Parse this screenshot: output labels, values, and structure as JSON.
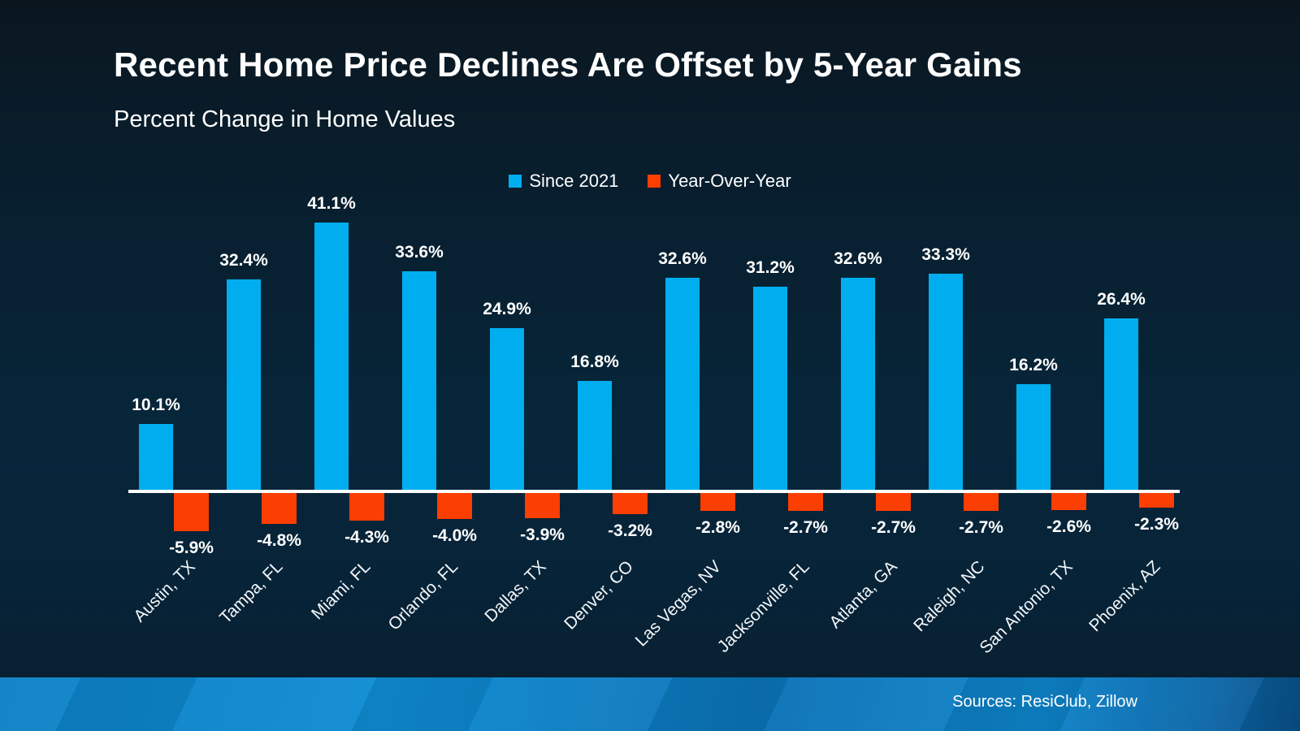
{
  "title": "Recent Home Price Declines Are Offset by 5-Year Gains",
  "subtitle": "Percent Change in Home Values",
  "legend": {
    "items": [
      {
        "label": "Since 2021",
        "color": "#00AEEF"
      },
      {
        "label": "Year-Over-Year",
        "color": "#FB3E01"
      }
    ]
  },
  "footer": {
    "sources_label": "Sources: ResiClub, Zillow"
  },
  "colors": {
    "background_top": "#0A141D",
    "background_mid": "#07263A",
    "bar_positive": "#00AEEF",
    "bar_negative": "#FB3E01",
    "axis_line": "#FFFFFF",
    "text": "#FFFFFF",
    "footer_band": "#0C80C5"
  },
  "chart_data": {
    "type": "bar",
    "title": "Recent Home Price Declines Are Offset by 5-Year Gains",
    "subtitle": "Percent Change in Home Values",
    "categories": [
      "Austin, TX",
      "Tampa, FL",
      "Miami, FL",
      "Orlando, FL",
      "Dallas, TX",
      "Denver, CO",
      "Las Vegas, NV",
      "Jacksonville, FL",
      "Atlanta, GA",
      "Raleigh, NC",
      "San Antonio, TX",
      "Phoenix, AZ"
    ],
    "series": [
      {
        "name": "Since 2021",
        "color": "#00AEEF",
        "values": [
          10.1,
          32.4,
          41.1,
          33.6,
          24.9,
          16.8,
          32.6,
          31.2,
          32.6,
          33.3,
          16.2,
          26.4
        ],
        "labels": [
          "10.1%",
          "32.4%",
          "41.1%",
          "33.6%",
          "24.9%",
          "16.8%",
          "32.6%",
          "31.2%",
          "32.6%",
          "33.3%",
          "16.2%",
          "26.4%"
        ]
      },
      {
        "name": "Year-Over-Year",
        "color": "#FB3E01",
        "values": [
          -5.9,
          -4.8,
          -4.3,
          -4.0,
          -3.9,
          -3.2,
          -2.8,
          -2.7,
          -2.7,
          -2.7,
          -2.6,
          -2.3
        ],
        "labels": [
          "-5.9%",
          "-4.8%",
          "-4.3%",
          "-4.0%",
          "-3.9%",
          "-3.2%",
          "-2.8%",
          "-2.7%",
          "-2.7%",
          "-2.7%",
          "-2.6%",
          "-2.3%"
        ]
      }
    ],
    "ylim": [
      -7.5,
      45
    ],
    "grid": false,
    "legend_position": "top-center",
    "value_labels_shown": true,
    "xtick_rotation_deg": 45
  }
}
